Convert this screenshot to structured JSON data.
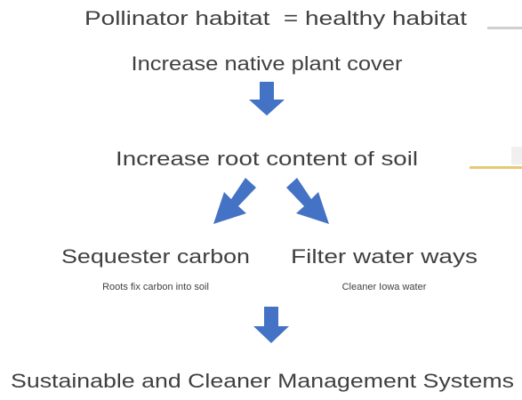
{
  "header": {
    "title": "Pollinator habitat  = healthy habitat"
  },
  "nodes": [
    {
      "label": "Increase native plant cover"
    },
    {
      "label": "Increase root content of soil"
    },
    {
      "label": "Sequester carbon",
      "note": "Roots fix carbon into soil"
    },
    {
      "label": "Filter water ways",
      "note": "Cleaner Iowa water"
    },
    {
      "label": "Sustainable and Cleaner Management Systems"
    }
  ]
}
